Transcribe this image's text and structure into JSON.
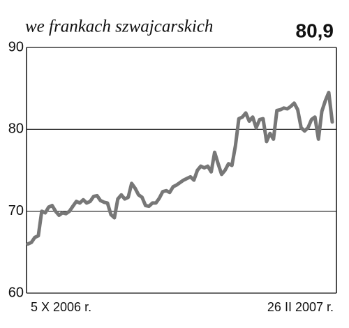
{
  "chart_data": {
    "type": "line",
    "title": "we frankach szwajcarskich",
    "headline": "80,9",
    "categories": [
      "5 X 2006 r.",
      null,
      null,
      null,
      null,
      null,
      null,
      null,
      null,
      null,
      null,
      null,
      null,
      null,
      null,
      null,
      null,
      null,
      null,
      null,
      null,
      null,
      null,
      null,
      null,
      null,
      null,
      null,
      null,
      null,
      null,
      null,
      null,
      null,
      null,
      null,
      null,
      null,
      null,
      null,
      null,
      null,
      null,
      null,
      null,
      null,
      null,
      null,
      null,
      null,
      null,
      null,
      null,
      null,
      null,
      null,
      null,
      null,
      null,
      null,
      null,
      null,
      null,
      null,
      null,
      null,
      null,
      null,
      null,
      null,
      null,
      null,
      null,
      null,
      null,
      null,
      null,
      null,
      null,
      null,
      null,
      null,
      null,
      null,
      null,
      null,
      null,
      null,
      "26 II 2007 r."
    ],
    "values": [
      66.0,
      66.2,
      66.8,
      67.0,
      70.0,
      69.8,
      70.5,
      70.7,
      70.0,
      69.5,
      69.8,
      69.7,
      70.0,
      70.6,
      71.2,
      71.0,
      71.4,
      71.0,
      71.2,
      71.8,
      71.9,
      71.3,
      71.1,
      71.0,
      69.6,
      69.2,
      71.5,
      72.0,
      71.5,
      71.7,
      73.4,
      72.8,
      72.0,
      71.7,
      70.7,
      70.6,
      71.0,
      71.0,
      71.6,
      72.4,
      72.5,
      72.3,
      73.0,
      73.2,
      73.5,
      73.8,
      74.0,
      74.2,
      73.8,
      75.0,
      75.5,
      75.3,
      75.5,
      74.8,
      77.2,
      75.8,
      74.5,
      75.0,
      75.8,
      75.6,
      78.0,
      81.3,
      81.5,
      82.0,
      81.0,
      81.5,
      80.2,
      81.2,
      81.3,
      78.5,
      79.5,
      78.8,
      82.3,
      82.4,
      82.6,
      82.5,
      82.8,
      83.2,
      82.4,
      80.2,
      79.8,
      80.2,
      81.2,
      81.5,
      78.8,
      82.2,
      83.5,
      84.5,
      80.9
    ],
    "color": "#777777",
    "ylim": [
      60,
      90
    ],
    "yticks": [
      60,
      70,
      80,
      90
    ],
    "grid": true
  }
}
